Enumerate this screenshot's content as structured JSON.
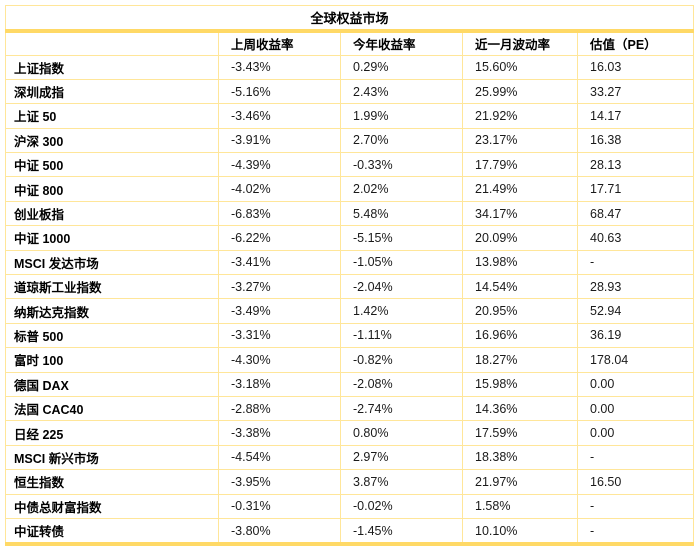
{
  "chart_data": {
    "type": "table",
    "title": "全球权益市场",
    "columns": [
      "",
      "上周收益率",
      "今年收益率",
      "近一月波动率",
      "估值（PE）"
    ],
    "rows": [
      {
        "label": "上证指数",
        "values": [
          "-3.43%",
          "0.29%",
          "15.60%",
          "16.03"
        ]
      },
      {
        "label": "深圳成指",
        "values": [
          "-5.16%",
          "2.43%",
          "25.99%",
          "33.27"
        ]
      },
      {
        "label": "上证 50",
        "values": [
          "-3.46%",
          "1.99%",
          "21.92%",
          "14.17"
        ]
      },
      {
        "label": "沪深 300",
        "values": [
          "-3.91%",
          "2.70%",
          "23.17%",
          "16.38"
        ]
      },
      {
        "label": "中证 500",
        "values": [
          "-4.39%",
          "-0.33%",
          "17.79%",
          "28.13"
        ]
      },
      {
        "label": "中证 800",
        "values": [
          "-4.02%",
          "2.02%",
          "21.49%",
          "17.71"
        ]
      },
      {
        "label": "创业板指",
        "values": [
          "-6.83%",
          "5.48%",
          "34.17%",
          "68.47"
        ]
      },
      {
        "label": "中证 1000",
        "values": [
          "-6.22%",
          "-5.15%",
          "20.09%",
          "40.63"
        ]
      },
      {
        "label": "MSCI 发达市场",
        "values": [
          "-3.41%",
          "-1.05%",
          "13.98%",
          "-"
        ]
      },
      {
        "label": "道琼斯工业指数",
        "values": [
          "-3.27%",
          "-2.04%",
          "14.54%",
          "28.93"
        ]
      },
      {
        "label": "纳斯达克指数",
        "values": [
          "-3.49%",
          "1.42%",
          "20.95%",
          "52.94"
        ]
      },
      {
        "label": "标普 500",
        "values": [
          "-3.31%",
          "-1.11%",
          "16.96%",
          "36.19"
        ]
      },
      {
        "label": "富时 100",
        "values": [
          "-4.30%",
          "-0.82%",
          "18.27%",
          "178.04"
        ]
      },
      {
        "label": "德国 DAX",
        "values": [
          "-3.18%",
          "-2.08%",
          "15.98%",
          "0.00"
        ]
      },
      {
        "label": "法国 CAC40",
        "values": [
          "-2.88%",
          "-2.74%",
          "14.36%",
          "0.00"
        ]
      },
      {
        "label": "日经 225",
        "values": [
          "-3.38%",
          "0.80%",
          "17.59%",
          "0.00"
        ]
      },
      {
        "label": "MSCI 新兴市场",
        "values": [
          "-4.54%",
          "2.97%",
          "18.38%",
          "-"
        ]
      },
      {
        "label": "恒生指数",
        "values": [
          "-3.95%",
          "3.87%",
          "21.97%",
          "16.50"
        ]
      },
      {
        "label": "中债总财富指数",
        "values": [
          "-0.31%",
          "-0.02%",
          "1.58%",
          "-"
        ]
      },
      {
        "label": "中证转债",
        "values": [
          "-3.80%",
          "-1.45%",
          "10.10%",
          "-"
        ]
      }
    ],
    "layout": {
      "grid": true,
      "header_bold": true,
      "row_label_bold": true
    }
  },
  "colors": {
    "border_thin": "#FFE699",
    "border_thick": "#FFD966",
    "text": "#000000",
    "background": "#FFFFFF"
  },
  "column_semantics": [
    "row-label",
    "last-week-return",
    "ytd-return",
    "one-month-volatility",
    "pe-valuation"
  ]
}
